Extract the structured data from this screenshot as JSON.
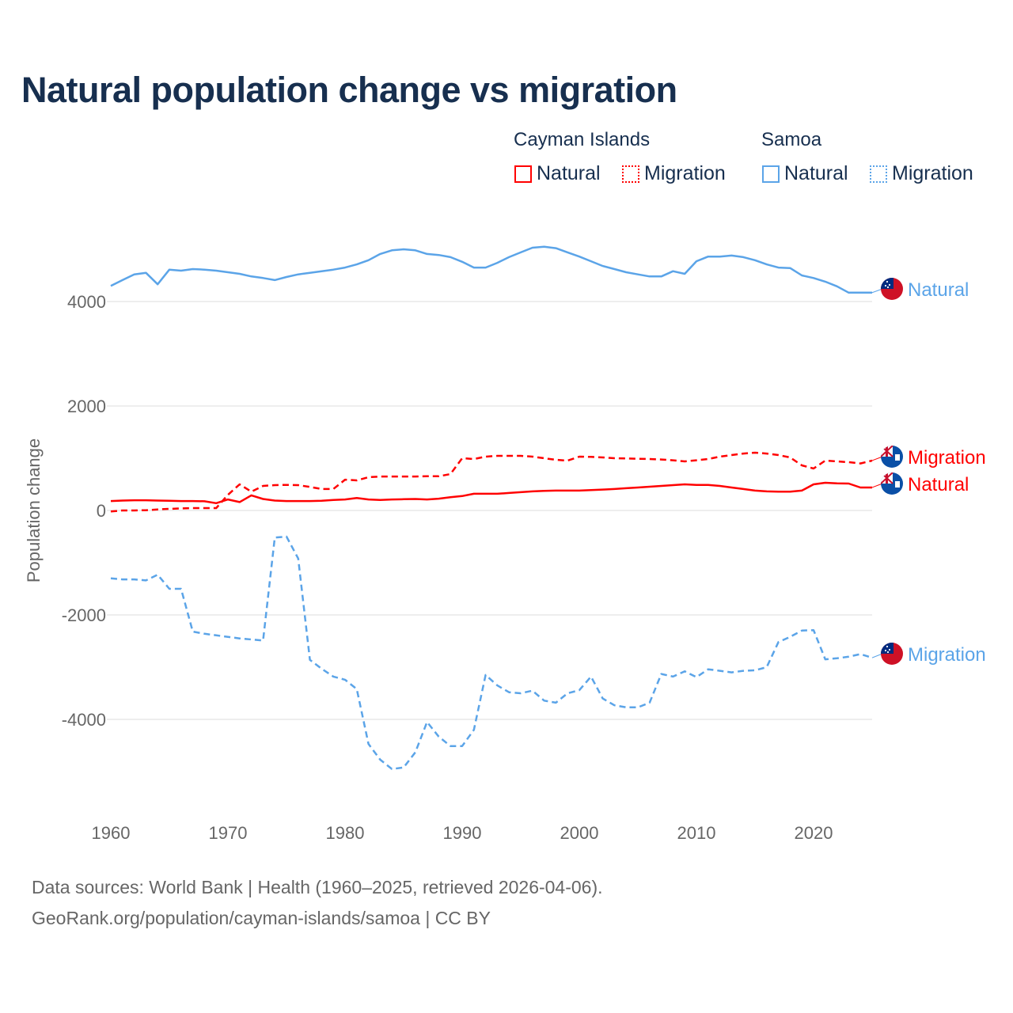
{
  "chart_data": {
    "type": "line",
    "title": "Natural population change vs migration",
    "ylabel": "Population change",
    "xlabel": "",
    "xlim": [
      1960,
      2025
    ],
    "ylim": [
      -5500,
      5500
    ],
    "yticks": [
      4000,
      2000,
      0,
      -2000,
      -4000
    ],
    "ytick_labels": [
      "4000",
      "2000",
      "0",
      "-2000",
      "-4000"
    ],
    "xticks": [
      1960,
      1970,
      1980,
      1990,
      2000,
      2010,
      2020
    ],
    "xtick_labels": [
      "1960",
      "1970",
      "1980",
      "1990",
      "2000",
      "2010",
      "2020"
    ],
    "legend": {
      "placement": "top-right",
      "groups": [
        {
          "name": "Cayman Islands",
          "items": [
            "Natural",
            "Migration"
          ]
        },
        {
          "name": "Samoa",
          "items": [
            "Natural",
            "Migration"
          ]
        }
      ]
    },
    "series": [
      {
        "name": "Samoa Natural",
        "label": "Natural",
        "country": "Samoa",
        "color": "#5ba4e8",
        "dash": false,
        "start_year": 1960,
        "values": [
          4300,
          4410,
          4520,
          4550,
          4330,
          4610,
          4590,
          4620,
          4610,
          4590,
          4560,
          4530,
          4480,
          4450,
          4410,
          4470,
          4520,
          4550,
          4580,
          4610,
          4650,
          4710,
          4790,
          4910,
          4980,
          5000,
          4980,
          4910,
          4890,
          4850,
          4760,
          4650,
          4650,
          4740,
          4850,
          4940,
          5030,
          5050,
          5020,
          4940,
          4860,
          4770,
          4680,
          4620,
          4560,
          4520,
          4480,
          4480,
          4580,
          4530,
          4770,
          4860,
          4860,
          4880,
          4850,
          4790,
          4710,
          4650,
          4640,
          4500,
          4450,
          4380,
          4290,
          4170,
          4170,
          4170
        ]
      },
      {
        "name": "Samoa Migration",
        "label": "Migration",
        "country": "Samoa",
        "color": "#5ba4e8",
        "dash": true,
        "start_year": 1960,
        "values": [
          -1300,
          -1320,
          -1320,
          -1340,
          -1230,
          -1500,
          -1500,
          -2320,
          -2360,
          -2390,
          -2420,
          -2450,
          -2470,
          -2490,
          -520,
          -500,
          -920,
          -2860,
          -3030,
          -3180,
          -3240,
          -3420,
          -4470,
          -4770,
          -4950,
          -4920,
          -4630,
          -4050,
          -4330,
          -4510,
          -4510,
          -4200,
          -3150,
          -3350,
          -3480,
          -3500,
          -3450,
          -3640,
          -3680,
          -3500,
          -3440,
          -3180,
          -3600,
          -3730,
          -3770,
          -3770,
          -3680,
          -3130,
          -3180,
          -3080,
          -3190,
          -3040,
          -3070,
          -3100,
          -3070,
          -3060,
          -3000,
          -2520,
          -2420,
          -2300,
          -2290,
          -2850,
          -2830,
          -2800,
          -2750,
          -2820
        ]
      },
      {
        "name": "Cayman Islands Natural",
        "label": "Natural",
        "country": "Cayman Islands",
        "color": "#ff0000",
        "dash": false,
        "start_year": 1960,
        "values": [
          180,
          190,
          195,
          195,
          190,
          185,
          180,
          180,
          175,
          140,
          210,
          160,
          290,
          220,
          190,
          180,
          180,
          180,
          185,
          200,
          210,
          240,
          210,
          200,
          210,
          215,
          220,
          210,
          225,
          255,
          275,
          320,
          320,
          320,
          335,
          350,
          365,
          375,
          380,
          380,
          380,
          390,
          400,
          410,
          425,
          440,
          455,
          470,
          485,
          500,
          490,
          490,
          470,
          440,
          410,
          380,
          365,
          360,
          360,
          380,
          500,
          530,
          520,
          515,
          440,
          440
        ]
      },
      {
        "name": "Cayman Islands Migration",
        "label": "Migration",
        "country": "Cayman Islands",
        "color": "#ff0000",
        "dash": true,
        "start_year": 1960,
        "values": [
          -20,
          0,
          0,
          5,
          20,
          30,
          40,
          45,
          45,
          45,
          300,
          500,
          360,
          470,
          485,
          490,
          485,
          450,
          410,
          410,
          590,
          576,
          636,
          650,
          650,
          650,
          650,
          655,
          655,
          697,
          1000,
          985,
          1030,
          1045,
          1045,
          1045,
          1030,
          1000,
          970,
          955,
          1030,
          1025,
          1015,
          1000,
          995,
          990,
          985,
          975,
          960,
          940,
          960,
          985,
          1030,
          1060,
          1090,
          1106,
          1090,
          1060,
          1015,
          864,
          803,
          955,
          940,
          924,
          900,
          955
        ]
      }
    ]
  },
  "legend_labels": {
    "cayman": "Cayman Islands",
    "samoa": "Samoa",
    "natural": "Natural",
    "migration": "Migration"
  },
  "footer": {
    "line1": "Data sources: World Bank | Health (1960–2025, retrieved 2026-04-06).",
    "line2": "GeoRank.org/population/cayman-islands/samoa | CC BY"
  }
}
